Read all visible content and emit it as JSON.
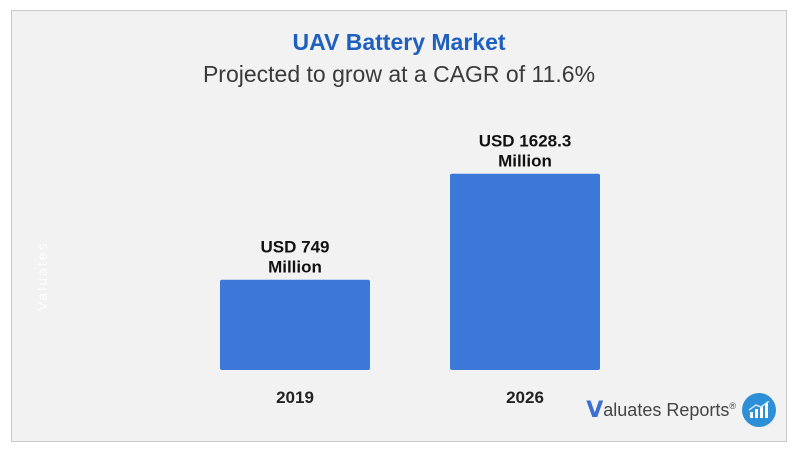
{
  "header": {
    "title": "UAV Battery Market",
    "subtitle": "Projected to grow at a CAGR of 11.6%"
  },
  "chart_data": {
    "type": "bar",
    "title": "UAV Battery Market",
    "subtitle": "Projected to grow at a CAGR of 11.6%",
    "categories": [
      "2019",
      "2026"
    ],
    "values": [
      749,
      1628.3
    ],
    "labels": [
      [
        "USD 749",
        "Million"
      ],
      [
        "USD 1628.3",
        "Million"
      ]
    ],
    "xlabel": "",
    "ylabel": "",
    "ylim": [
      0,
      1900
    ],
    "grid": false,
    "bar_color": "#3c78d8"
  },
  "watermark": "Valuates",
  "logo": {
    "letter": "V",
    "text": "aluates Reports",
    "mark": "®",
    "icon": "chart-badge-icon"
  },
  "colors": {
    "title": "#1f5fbf",
    "bar": "#3c78d8",
    "background": "#f2f2f2"
  }
}
